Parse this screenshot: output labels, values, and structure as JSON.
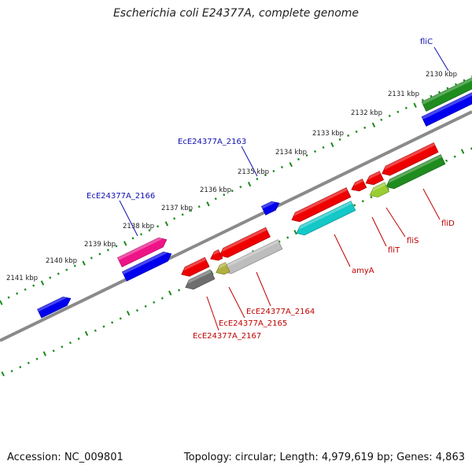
{
  "title": "Escherichia coli E24377A, complete genome",
  "footer": {
    "accession": "Accession: NC_009801",
    "summary": "Topology: circular; Length: 4,979,619 bp; Genes: 4,863"
  },
  "colors": {
    "backbone": "#8a8a8a",
    "tick": "#1a8a1a",
    "label_forward": "#1010b0",
    "label_reverse": "#c00000",
    "blue": "#0000ee",
    "green": "#1e8c1e",
    "red": "#ee0000",
    "magenta": "#ee1488",
    "cyan": "#14c8c8",
    "gray": "#bdbdbd",
    "darkgray": "#6e6e6e",
    "olive": "#b0b040",
    "lime": "#9acd32"
  },
  "scale_labels": [
    "2130 kbp",
    "2131 kbp",
    "2132 kbp",
    "2133 kbp",
    "2134 kbp",
    "2135 kbp",
    "2136 kbp",
    "2137 kbp",
    "2138 kbp",
    "2139 kbp",
    "2140 kbp",
    "2141 kbp"
  ],
  "gene_labels": [
    {
      "text": "fliC",
      "strand": "forward"
    },
    {
      "text": "EcE24377A_2163",
      "strand": "forward"
    },
    {
      "text": "EcE24377A_2166",
      "strand": "forward"
    },
    {
      "text": "fliD",
      "strand": "reverse"
    },
    {
      "text": "fliS",
      "strand": "reverse"
    },
    {
      "text": "fliT",
      "strand": "reverse"
    },
    {
      "text": "amyA",
      "strand": "reverse"
    },
    {
      "text": "EcE24377A_2164",
      "strand": "reverse"
    },
    {
      "text": "EcE24377A_2165",
      "strand": "reverse"
    },
    {
      "text": "EcE24377A_2167",
      "strand": "reverse"
    }
  ],
  "features": [
    {
      "name": "fwd-blue-1",
      "color": "blue",
      "track": "forward-outer"
    },
    {
      "name": "fwd-green-1",
      "color": "green",
      "track": "forward-outer"
    },
    {
      "name": "fwd-blue-2",
      "color": "blue",
      "track": "forward-inner"
    },
    {
      "name": "fwd-blue-3",
      "color": "blue",
      "track": "forward-inner"
    },
    {
      "name": "fwd-magenta",
      "color": "magenta",
      "track": "forward-outer"
    },
    {
      "name": "fwd-blue-4",
      "color": "blue",
      "track": "forward-inner"
    },
    {
      "name": "rev-red-1",
      "color": "red",
      "track": "reverse-outer"
    },
    {
      "name": "rev-red-2",
      "color": "red",
      "track": "reverse-outer"
    },
    {
      "name": "rev-red-3",
      "color": "red",
      "track": "reverse-outer"
    },
    {
      "name": "rev-red-4",
      "color": "red",
      "track": "reverse-outer"
    },
    {
      "name": "rev-red-5",
      "color": "red",
      "track": "reverse-outer"
    },
    {
      "name": "rev-red-6",
      "color": "red",
      "track": "reverse-outer"
    },
    {
      "name": "rev-red-7",
      "color": "red",
      "track": "reverse-outer"
    },
    {
      "name": "rev-green",
      "color": "green",
      "track": "reverse-inner"
    },
    {
      "name": "rev-lime",
      "color": "lime",
      "track": "reverse-inner"
    },
    {
      "name": "rev-cyan",
      "color": "cyan",
      "track": "reverse-inner"
    },
    {
      "name": "rev-gray",
      "color": "gray",
      "track": "reverse-inner"
    },
    {
      "name": "rev-olive",
      "color": "olive",
      "track": "reverse-inner"
    },
    {
      "name": "rev-darkgray",
      "color": "darkgray",
      "track": "reverse-inner"
    }
  ]
}
